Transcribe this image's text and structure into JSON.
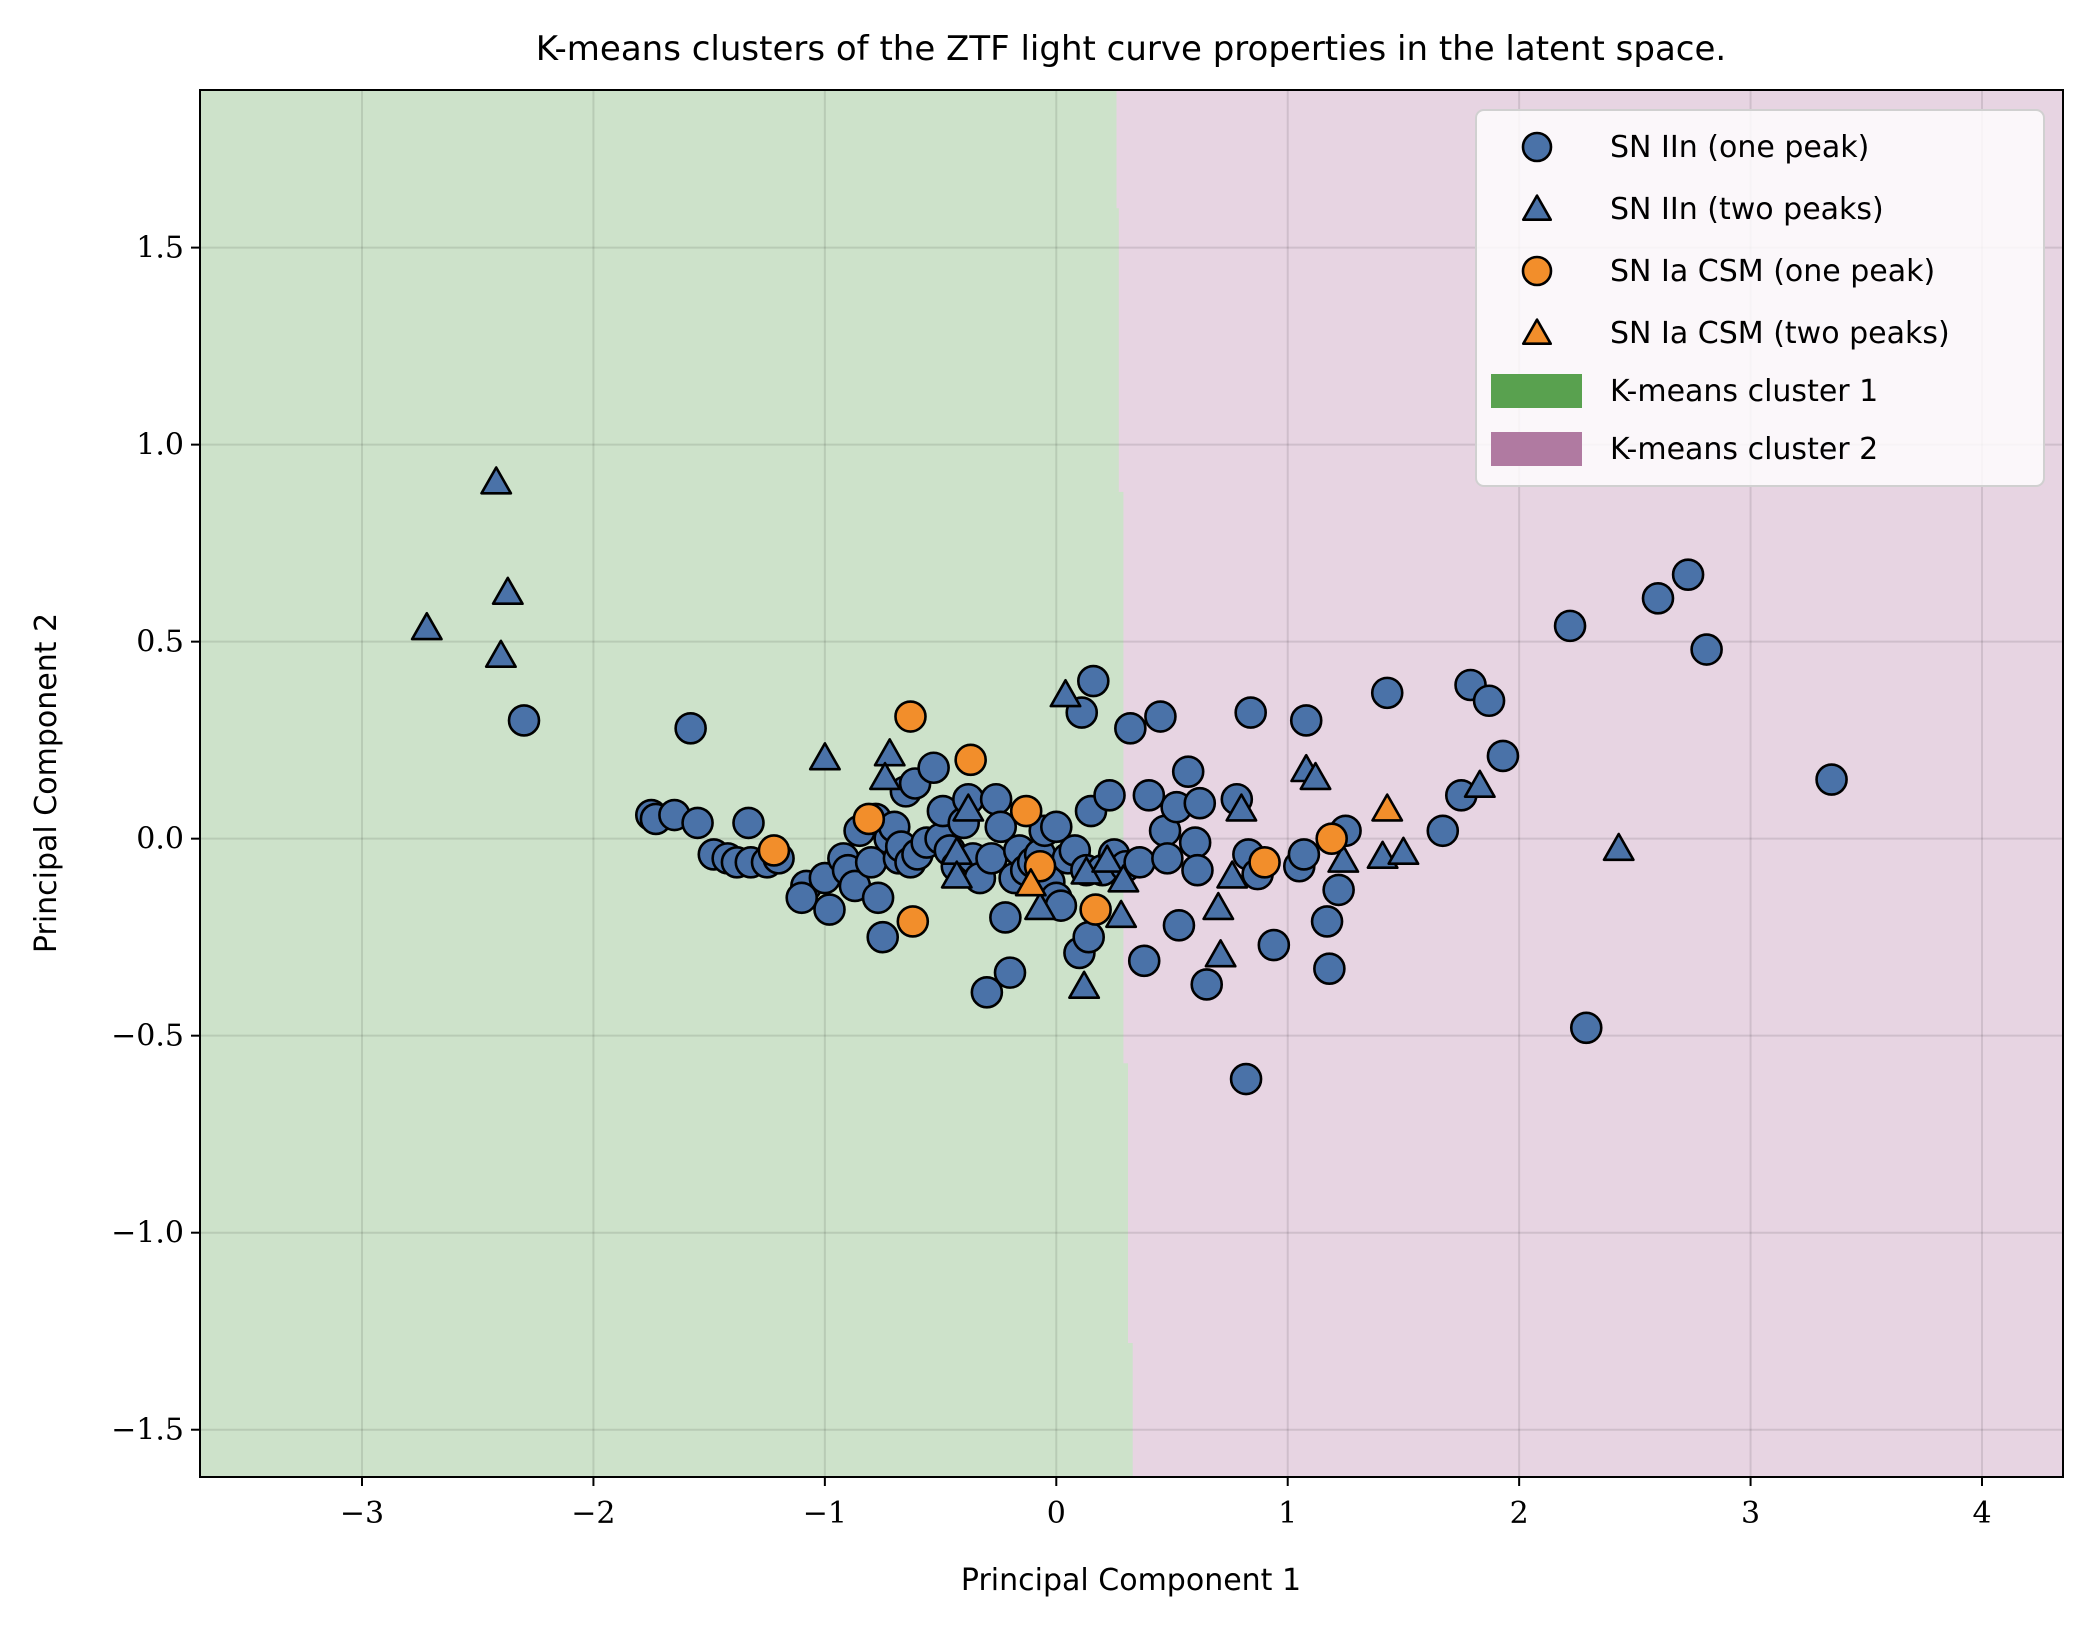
{
  "chart_data": {
    "type": "scatter",
    "title": "K-means clusters of the ZTF light curve properties in the latent space.",
    "xlabel": "Principal Component 1",
    "ylabel": "Principal Component 2",
    "xlim": [
      -3.7,
      4.35
    ],
    "ylim": [
      -1.62,
      1.9
    ],
    "xticks": [
      -3,
      -2,
      -1,
      0,
      1,
      2,
      3,
      4
    ],
    "xtick_labels": [
      "−3",
      "−2",
      "−1",
      "0",
      "1",
      "2",
      "3",
      "4"
    ],
    "yticks": [
      -1.5,
      -1.0,
      -0.5,
      0.0,
      0.5,
      1.0,
      1.5
    ],
    "ytick_labels": [
      "−1.5",
      "−1.0",
      "−0.5",
      "0.0",
      "0.5",
      "1.0",
      "1.5"
    ],
    "grid": true,
    "legend_position": "top-right",
    "colors": {
      "sn_iin": "#4a72a8",
      "sn_ia_csm": "#f28e2b",
      "cluster1_region": "#cde2ca",
      "cluster2_region": "#e7d4e2",
      "cluster1_legend": "#59a14f",
      "cluster2_legend": "#b07aa1"
    },
    "cluster_boundary": [
      [
        0.26,
        1.9
      ],
      [
        0.26,
        1.6
      ],
      [
        0.27,
        1.6
      ],
      [
        0.27,
        0.88
      ],
      [
        0.29,
        0.88
      ],
      [
        0.29,
        -0.57
      ],
      [
        0.31,
        -0.57
      ],
      [
        0.31,
        -1.28
      ],
      [
        0.33,
        -1.28
      ],
      [
        0.33,
        -1.62
      ]
    ],
    "clusters": [
      {
        "name": "K-means cluster 1"
      },
      {
        "name": "K-means cluster 2"
      }
    ],
    "series": [
      {
        "name": "SN IIn (one peak)",
        "marker": "circle",
        "color": "#4a72a8",
        "points": [
          [
            -2.3,
            0.3
          ],
          [
            -1.58,
            0.28
          ],
          [
            -1.75,
            0.06
          ],
          [
            -1.73,
            0.05
          ],
          [
            -1.65,
            0.06
          ],
          [
            -1.55,
            0.04
          ],
          [
            -1.48,
            -0.04
          ],
          [
            -1.42,
            -0.05
          ],
          [
            -1.38,
            -0.06
          ],
          [
            -1.32,
            -0.06
          ],
          [
            -1.33,
            0.04
          ],
          [
            -1.25,
            -0.06
          ],
          [
            -1.2,
            -0.05
          ],
          [
            -1.08,
            -0.12
          ],
          [
            -1.1,
            -0.15
          ],
          [
            -1.0,
            -0.1
          ],
          [
            -0.98,
            -0.18
          ],
          [
            -0.92,
            -0.05
          ],
          [
            -0.9,
            -0.08
          ],
          [
            -0.87,
            -0.12
          ],
          [
            -0.85,
            0.02
          ],
          [
            -0.8,
            -0.06
          ],
          [
            -0.78,
            0.05
          ],
          [
            -0.77,
            -0.15
          ],
          [
            -0.75,
            -0.25
          ],
          [
            -0.72,
            0.0
          ],
          [
            -0.7,
            0.03
          ],
          [
            -0.68,
            -0.05
          ],
          [
            -0.67,
            -0.02
          ],
          [
            -0.65,
            0.12
          ],
          [
            -0.63,
            -0.06
          ],
          [
            -0.61,
            0.14
          ],
          [
            -0.6,
            -0.04
          ],
          [
            -0.56,
            -0.01
          ],
          [
            -0.53,
            0.18
          ],
          [
            -0.5,
            0.0
          ],
          [
            -0.49,
            0.07
          ],
          [
            -0.46,
            -0.03
          ],
          [
            -0.43,
            -0.07
          ],
          [
            -0.4,
            0.04
          ],
          [
            -0.38,
            0.1
          ],
          [
            -0.36,
            -0.05
          ],
          [
            -0.33,
            -0.1
          ],
          [
            -0.3,
            -0.39
          ],
          [
            -0.28,
            -0.05
          ],
          [
            -0.26,
            0.1
          ],
          [
            -0.24,
            0.03
          ],
          [
            -0.22,
            -0.2
          ],
          [
            -0.2,
            -0.34
          ],
          [
            -0.18,
            -0.1
          ],
          [
            -0.16,
            -0.03
          ],
          [
            -0.13,
            -0.08
          ],
          [
            -0.1,
            -0.06
          ],
          [
            -0.07,
            -0.04
          ],
          [
            -0.05,
            0.02
          ],
          [
            -0.03,
            -0.11
          ],
          [
            0.0,
            0.03
          ],
          [
            0.0,
            -0.15
          ],
          [
            0.02,
            -0.17
          ],
          [
            0.05,
            -0.05
          ],
          [
            0.08,
            -0.03
          ],
          [
            0.1,
            -0.29
          ],
          [
            0.11,
            0.32
          ],
          [
            0.13,
            -0.08
          ],
          [
            0.14,
            -0.25
          ],
          [
            0.15,
            0.07
          ],
          [
            0.16,
            0.4
          ],
          [
            0.2,
            -0.08
          ],
          [
            0.23,
            0.11
          ],
          [
            0.25,
            -0.04
          ],
          [
            0.3,
            -0.07
          ],
          [
            0.32,
            0.28
          ],
          [
            0.36,
            -0.06
          ],
          [
            0.38,
            -0.31
          ],
          [
            0.4,
            0.11
          ],
          [
            0.45,
            0.31
          ],
          [
            0.47,
            0.02
          ],
          [
            0.48,
            -0.05
          ],
          [
            0.52,
            0.08
          ],
          [
            0.53,
            -0.22
          ],
          [
            0.57,
            0.17
          ],
          [
            0.6,
            -0.01
          ],
          [
            0.61,
            -0.08
          ],
          [
            0.62,
            0.09
          ],
          [
            0.65,
            -0.37
          ],
          [
            0.78,
            0.1
          ],
          [
            0.82,
            -0.61
          ],
          [
            0.83,
            -0.04
          ],
          [
            0.84,
            0.32
          ],
          [
            0.87,
            -0.09
          ],
          [
            0.94,
            -0.27
          ],
          [
            1.05,
            -0.07
          ],
          [
            1.07,
            -0.04
          ],
          [
            1.08,
            0.3
          ],
          [
            1.17,
            -0.21
          ],
          [
            1.18,
            -0.33
          ],
          [
            1.22,
            -0.13
          ],
          [
            1.25,
            0.02
          ],
          [
            1.43,
            0.37
          ],
          [
            1.67,
            0.02
          ],
          [
            1.75,
            0.11
          ],
          [
            1.79,
            0.39
          ],
          [
            1.87,
            0.35
          ],
          [
            1.93,
            0.21
          ],
          [
            2.22,
            0.54
          ],
          [
            2.29,
            -0.48
          ],
          [
            2.6,
            0.61
          ],
          [
            2.73,
            0.67
          ],
          [
            2.81,
            0.48
          ],
          [
            3.35,
            0.15
          ]
        ]
      },
      {
        "name": "SN IIn (two peaks)",
        "marker": "triangle",
        "color": "#4a72a8",
        "points": [
          [
            -2.42,
            0.9
          ],
          [
            -2.37,
            0.62
          ],
          [
            -2.72,
            0.53
          ],
          [
            -2.4,
            0.46
          ],
          [
            -1.0,
            0.2
          ],
          [
            -0.72,
            0.21
          ],
          [
            -0.74,
            0.15
          ],
          [
            -0.38,
            0.07
          ],
          [
            -0.43,
            -0.04
          ],
          [
            -0.43,
            -0.1
          ],
          [
            -0.07,
            -0.18
          ],
          [
            0.04,
            0.36
          ],
          [
            0.12,
            -0.38
          ],
          [
            0.13,
            -0.09
          ],
          [
            0.22,
            -0.06
          ],
          [
            0.29,
            -0.11
          ],
          [
            0.28,
            -0.2
          ],
          [
            0.7,
            -0.18
          ],
          [
            0.71,
            -0.3
          ],
          [
            0.76,
            -0.1
          ],
          [
            0.8,
            0.07
          ],
          [
            1.08,
            0.17
          ],
          [
            1.12,
            0.15
          ],
          [
            1.24,
            -0.06
          ],
          [
            1.41,
            -0.05
          ],
          [
            1.5,
            -0.04
          ],
          [
            1.83,
            0.13
          ],
          [
            2.43,
            -0.03
          ]
        ]
      },
      {
        "name": "SN Ia CSM (one peak)",
        "marker": "circle",
        "color": "#f28e2b",
        "points": [
          [
            -1.22,
            -0.03
          ],
          [
            -0.81,
            0.05
          ],
          [
            -0.63,
            0.31
          ],
          [
            -0.62,
            -0.21
          ],
          [
            -0.37,
            0.2
          ],
          [
            -0.13,
            0.07
          ],
          [
            -0.07,
            -0.07
          ],
          [
            0.17,
            -0.18
          ],
          [
            0.9,
            -0.06
          ],
          [
            1.19,
            0.0
          ]
        ]
      },
      {
        "name": "SN Ia CSM (two peaks)",
        "marker": "triangle",
        "color": "#f28e2b",
        "points": [
          [
            -0.11,
            -0.12
          ],
          [
            1.43,
            0.07
          ]
        ]
      }
    ]
  }
}
